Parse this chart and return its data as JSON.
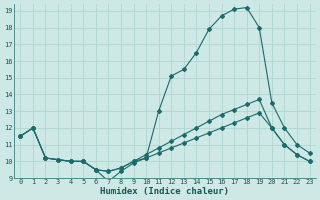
{
  "xlabel": "Humidex (Indice chaleur)",
  "bg_color": "#cde8e5",
  "grid_color": "#b0d5d0",
  "line_color": "#1a6b6b",
  "xlim": [
    -0.5,
    23.5
  ],
  "ylim": [
    9,
    19.4
  ],
  "xticks": [
    0,
    1,
    2,
    3,
    4,
    5,
    6,
    7,
    8,
    9,
    10,
    11,
    12,
    13,
    14,
    15,
    16,
    17,
    18,
    19,
    20,
    21,
    22,
    23
  ],
  "yticks": [
    9,
    10,
    11,
    12,
    13,
    14,
    15,
    16,
    17,
    18,
    19
  ],
  "line1_x": [
    0,
    1,
    2,
    3,
    4,
    5,
    6,
    7,
    8,
    9,
    10,
    11,
    12,
    13,
    14,
    15,
    16,
    17,
    18,
    19,
    20,
    21,
    22,
    23
  ],
  "line1_y": [
    11.5,
    12.0,
    10.2,
    10.1,
    10.0,
    10.0,
    9.5,
    8.8,
    9.4,
    9.9,
    10.2,
    13.0,
    15.1,
    15.5,
    16.5,
    17.9,
    18.7,
    19.1,
    19.2,
    18.0,
    13.5,
    12.0,
    11.0,
    10.5
  ],
  "line2_x": [
    0,
    1,
    2,
    3,
    4,
    5,
    6,
    7,
    8,
    9,
    10,
    11,
    12,
    13,
    14,
    15,
    16,
    17,
    18,
    19,
    20,
    21,
    22,
    23
  ],
  "line2_y": [
    11.5,
    12.0,
    10.2,
    10.1,
    10.0,
    10.0,
    9.5,
    9.4,
    9.6,
    10.0,
    10.4,
    10.8,
    11.2,
    11.6,
    12.0,
    12.4,
    12.8,
    13.1,
    13.4,
    13.7,
    12.0,
    11.0,
    10.4,
    10.0
  ],
  "line3_x": [
    0,
    1,
    2,
    3,
    4,
    5,
    6,
    7,
    8,
    9,
    10,
    11,
    12,
    13,
    14,
    15,
    16,
    17,
    18,
    19,
    20,
    21,
    22,
    23
  ],
  "line3_y": [
    11.5,
    12.0,
    10.2,
    10.1,
    10.0,
    10.0,
    9.5,
    9.4,
    9.6,
    10.0,
    10.2,
    10.5,
    10.8,
    11.1,
    11.4,
    11.7,
    12.0,
    12.3,
    12.6,
    12.9,
    12.0,
    11.0,
    10.4,
    10.0
  ]
}
